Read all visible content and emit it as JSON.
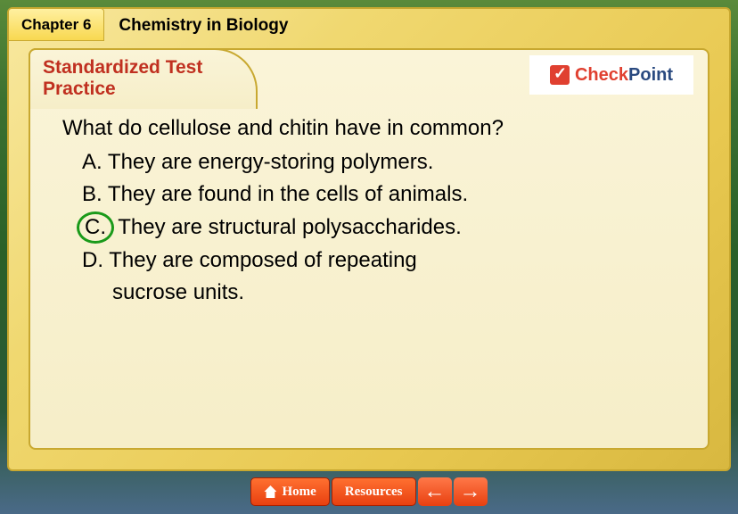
{
  "header": {
    "chapter_label": "Chapter 6",
    "title": "Chemistry in Biology"
  },
  "section": {
    "heading_line1": "Standardized Test",
    "heading_line2": "Practice"
  },
  "checkpoint": {
    "check": "Check",
    "point": "Point"
  },
  "question": "What do cellulose and chitin have in common?",
  "options": [
    {
      "letter": "A.",
      "text": "They are energy-storing polymers.",
      "correct": false
    },
    {
      "letter": "B.",
      "text": "They are found in the cells of animals.",
      "correct": false
    },
    {
      "letter": "C.",
      "text": "They are structural polysaccharides.",
      "correct": true
    },
    {
      "letter": "D.",
      "text": "They are composed of repeating",
      "correct": false,
      "continuation": "sucrose units."
    }
  ],
  "nav": {
    "home": "Home",
    "resources": "Resources"
  },
  "colors": {
    "accent_red": "#c03020",
    "correct_circle": "#1a9a1a",
    "nav_orange": "#e84010",
    "cp_red": "#e04030",
    "cp_blue": "#2a4a80",
    "panel_bg": "#f6eec8",
    "frame_bg": "#e8c850"
  }
}
